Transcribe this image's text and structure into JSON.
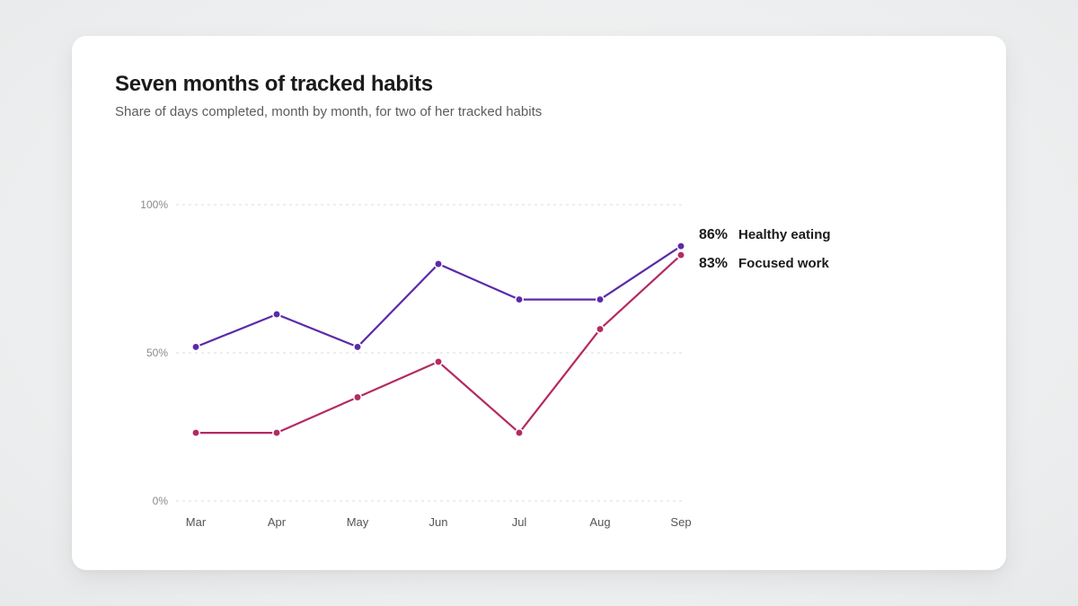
{
  "title": "Seven months of tracked habits",
  "subtitle": "Share of days completed, month by month, for two of her tracked habits",
  "colors": {
    "healthy_eating": "#5b2aa8",
    "focused_work": "#b42a63",
    "label_text": "#1b1b1b"
  },
  "chart_data": {
    "type": "line",
    "title": "Seven months of tracked habits",
    "subtitle": "Share of days completed, month by month, for two of her tracked habits",
    "xlabel": "",
    "ylabel": "",
    "categories": [
      "Mar",
      "Apr",
      "May",
      "Jun",
      "Jul",
      "Aug",
      "Sep"
    ],
    "ylim": [
      0,
      100
    ],
    "y_ticks": [
      0,
      50,
      100
    ],
    "y_tick_labels": [
      "0%",
      "50%",
      "100%"
    ],
    "grid": "horizontal-dashed",
    "legend": "direct-labels-right",
    "series": [
      {
        "name": "Healthy eating",
        "values": [
          52,
          63,
          52,
          80,
          68,
          68,
          86
        ],
        "end_label": "86%",
        "color": "#5b2aa8"
      },
      {
        "name": "Focused work",
        "values": [
          23,
          23,
          35,
          47,
          23,
          58,
          83
        ],
        "end_label": "83%",
        "color": "#b42a63"
      }
    ]
  }
}
